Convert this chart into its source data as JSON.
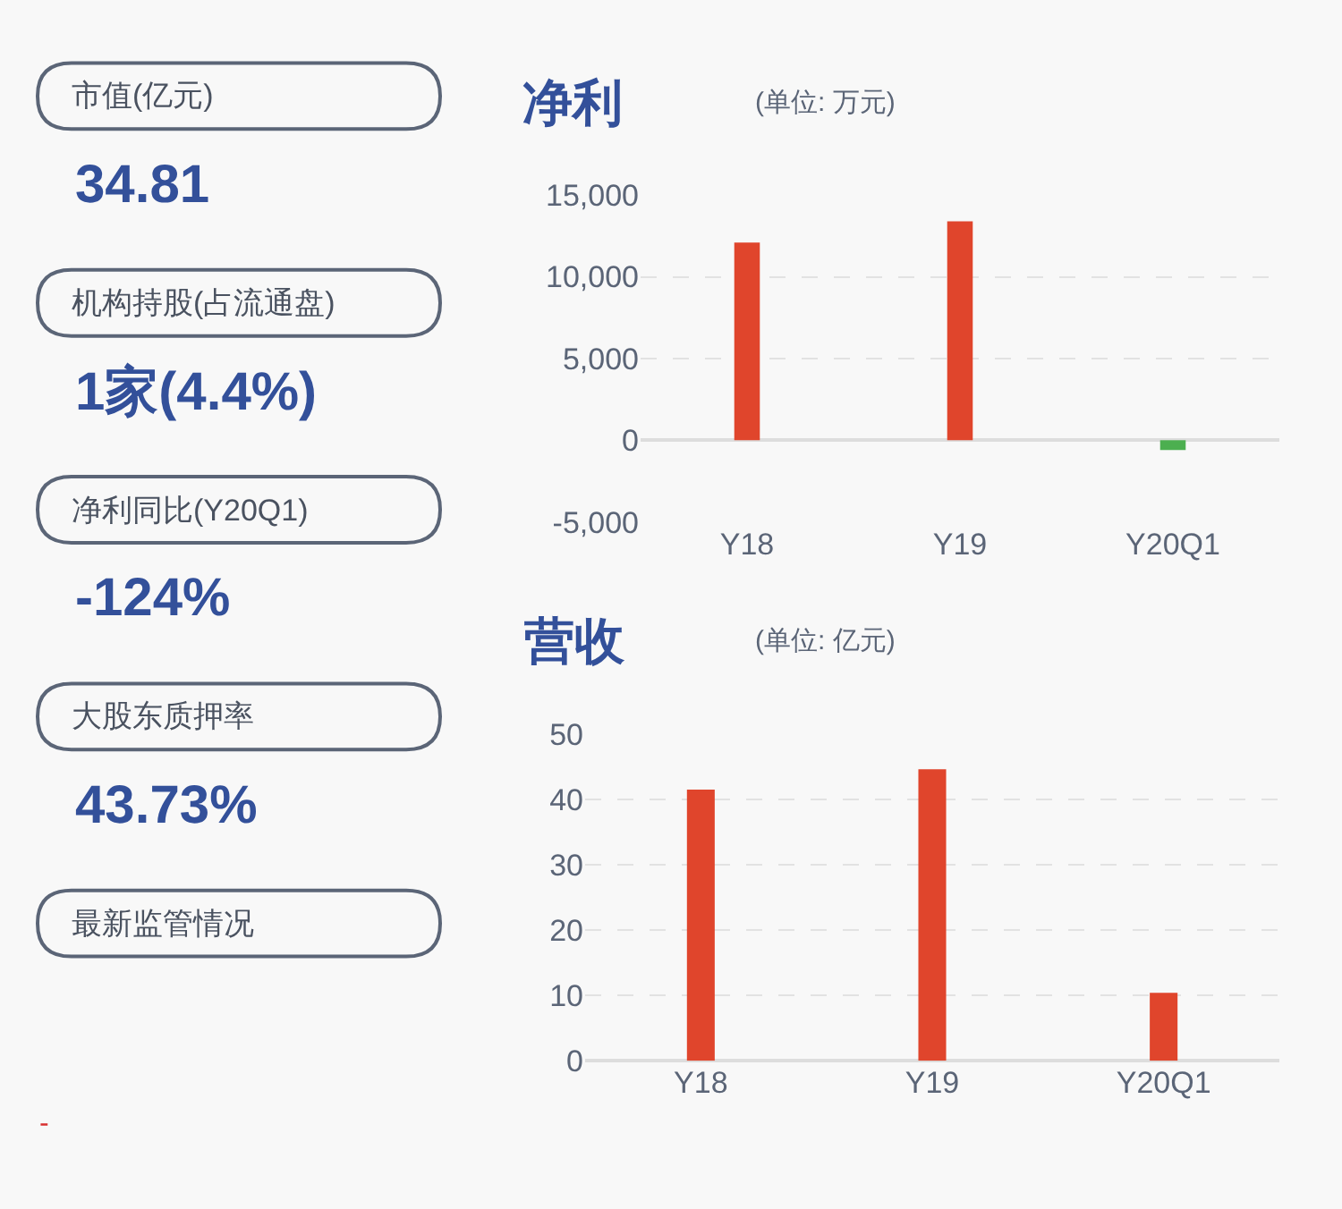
{
  "chart_data": [
    {
      "type": "other",
      "annotations": [
        "市值(亿元)",
        "34.81",
        "机构持股(占流通盘)",
        "1家(4.4%)",
        "净利同比(Y20Q1)",
        "-124%",
        "大股东质押率",
        "43.73%",
        "最新监管情况",
        "-"
      ]
    },
    {
      "type": "bar",
      "title": "净利",
      "subtitle": "(单位: 万元)",
      "categories": [
        "Y18",
        "Y19",
        "Y20Q1"
      ],
      "values": [
        12100,
        13400,
        -600
      ],
      "colors": [
        "#e0452c",
        "#e0452c",
        "#4caf50"
      ],
      "ylim": [
        -5000,
        15000
      ],
      "yticks": [
        {
          "value": -5000,
          "label": "-5,000"
        },
        0,
        {
          "value": 5000,
          "label": "5,000"
        },
        {
          "value": 10000,
          "label": "10,000"
        },
        {
          "value": 15000,
          "label": "15,000"
        }
      ],
      "grid": "y"
    },
    {
      "type": "bar",
      "title": "营收",
      "subtitle": "(单位: 亿元)",
      "categories": [
        "Y18",
        "Y19",
        "Y20Q1"
      ],
      "values": [
        41.5,
        44.6,
        10.4
      ],
      "colors": [
        "#e0452c",
        "#e0452c",
        "#e0452c"
      ],
      "ylim": [
        0,
        50
      ],
      "yticks": [
        0,
        10,
        20,
        30,
        40,
        50
      ],
      "grid": "y"
    }
  ]
}
